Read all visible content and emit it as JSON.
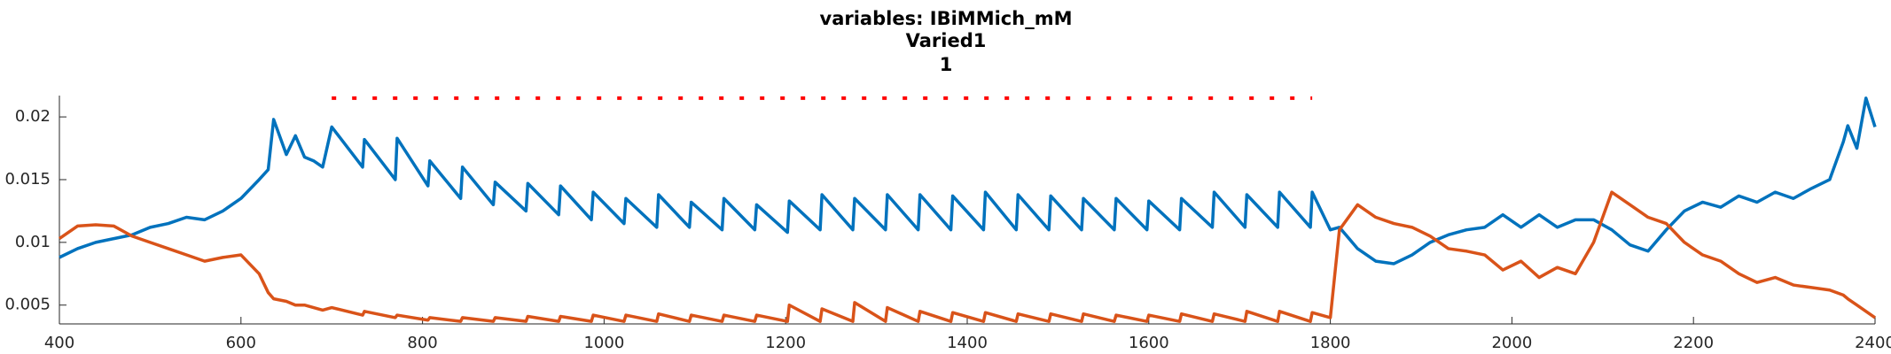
{
  "chart_data": {
    "type": "line",
    "title": "variables: IBiMMich_mM",
    "subtitle": "Varied1",
    "subtitle2": "1",
    "xlim": [
      400,
      2400
    ],
    "xticks": [
      400,
      600,
      800,
      1000,
      1200,
      1400,
      1600,
      1800,
      2000,
      2200,
      2400
    ],
    "ylim": [
      0.0035,
      0.0217
    ],
    "yticks": [
      0.005,
      0.01,
      0.015,
      0.02
    ],
    "grid": false,
    "x": [
      400,
      420,
      440,
      460,
      480,
      500,
      520,
      540,
      560,
      580,
      600,
      620,
      630,
      636,
      650,
      660,
      670,
      680,
      690,
      700,
      734,
      736,
      770,
      772,
      806,
      808,
      842,
      844,
      878,
      880,
      914,
      916,
      950,
      952,
      986,
      988,
      1022,
      1024,
      1058,
      1060,
      1094,
      1096,
      1130,
      1132,
      1166,
      1168,
      1202,
      1204,
      1238,
      1240,
      1274,
      1276,
      1310,
      1312,
      1346,
      1348,
      1382,
      1384,
      1418,
      1420,
      1454,
      1456,
      1490,
      1492,
      1526,
      1528,
      1562,
      1564,
      1598,
      1600,
      1634,
      1636,
      1670,
      1672,
      1706,
      1708,
      1742,
      1744,
      1778,
      1780,
      1800,
      1810,
      1830,
      1850,
      1870,
      1890,
      1910,
      1930,
      1950,
      1970,
      1990,
      2010,
      2030,
      2050,
      2070,
      2090,
      2110,
      2130,
      2150,
      2170,
      2190,
      2210,
      2230,
      2250,
      2270,
      2290,
      2310,
      2330,
      2350,
      2365,
      2370,
      2380,
      2390,
      2400
    ],
    "series": [
      {
        "color": "#0072bd",
        "values": [
          0.0088,
          0.0095,
          0.01,
          0.0103,
          0.0106,
          0.0112,
          0.0115,
          0.012,
          0.0118,
          0.0125,
          0.0135,
          0.015,
          0.0158,
          0.0198,
          0.017,
          0.0185,
          0.0168,
          0.0165,
          0.016,
          0.0192,
          0.016,
          0.0182,
          0.015,
          0.0183,
          0.0145,
          0.0165,
          0.0135,
          0.016,
          0.013,
          0.0148,
          0.0125,
          0.0147,
          0.0122,
          0.0145,
          0.0118,
          0.014,
          0.0115,
          0.0135,
          0.0112,
          0.0138,
          0.0112,
          0.0132,
          0.011,
          0.0135,
          0.011,
          0.013,
          0.0108,
          0.0133,
          0.011,
          0.0138,
          0.011,
          0.0135,
          0.011,
          0.0138,
          0.011,
          0.0138,
          0.011,
          0.0137,
          0.011,
          0.014,
          0.011,
          0.0138,
          0.011,
          0.0137,
          0.011,
          0.0135,
          0.011,
          0.0135,
          0.011,
          0.0133,
          0.011,
          0.0135,
          0.0112,
          0.014,
          0.0112,
          0.0138,
          0.0112,
          0.014,
          0.0112,
          0.014,
          0.011,
          0.0112,
          0.0095,
          0.0085,
          0.0083,
          0.009,
          0.01,
          0.0106,
          0.011,
          0.0112,
          0.0122,
          0.0112,
          0.0122,
          0.0112,
          0.0118,
          0.0118,
          0.011,
          0.0098,
          0.0093,
          0.011,
          0.0125,
          0.0132,
          0.0128,
          0.0137,
          0.0132,
          0.014,
          0.0135,
          0.0143,
          0.015,
          0.018,
          0.0193,
          0.0175,
          0.0215,
          0.0192
        ]
      },
      {
        "color": "#d95319",
        "values": [
          0.0103,
          0.0113,
          0.0114,
          0.0113,
          0.0105,
          0.01,
          0.0095,
          0.009,
          0.0085,
          0.0088,
          0.009,
          0.0075,
          0.006,
          0.0055,
          0.0053,
          0.005,
          0.005,
          0.0048,
          0.0046,
          0.0048,
          0.0042,
          0.0045,
          0.004,
          0.0042,
          0.0038,
          0.004,
          0.0037,
          0.004,
          0.0037,
          0.004,
          0.0037,
          0.0041,
          0.0037,
          0.0041,
          0.0037,
          0.0042,
          0.0037,
          0.0042,
          0.0037,
          0.0043,
          0.0037,
          0.0042,
          0.0037,
          0.0042,
          0.0037,
          0.0042,
          0.0037,
          0.005,
          0.0037,
          0.0047,
          0.0037,
          0.0052,
          0.0037,
          0.0048,
          0.0037,
          0.0045,
          0.0037,
          0.0044,
          0.0037,
          0.0044,
          0.0037,
          0.0043,
          0.0037,
          0.0043,
          0.0037,
          0.0043,
          0.0037,
          0.0042,
          0.0037,
          0.0042,
          0.0037,
          0.0043,
          0.0037,
          0.0043,
          0.0037,
          0.0045,
          0.0037,
          0.0045,
          0.0037,
          0.0044,
          0.004,
          0.011,
          0.013,
          0.012,
          0.0115,
          0.0112,
          0.0105,
          0.0095,
          0.0093,
          0.009,
          0.0078,
          0.0085,
          0.0072,
          0.008,
          0.0075,
          0.01,
          0.014,
          0.013,
          0.012,
          0.0115,
          0.01,
          0.009,
          0.0085,
          0.0075,
          0.0068,
          0.0072,
          0.0066,
          0.0064,
          0.0062,
          0.0058,
          0.0055,
          0.005,
          0.0045,
          0.004
        ]
      },
      {
        "color": "#ff0000",
        "line_style": "dotted",
        "x": [
          700,
          1780
        ],
        "values": [
          0.0215,
          0.0215
        ]
      }
    ]
  }
}
